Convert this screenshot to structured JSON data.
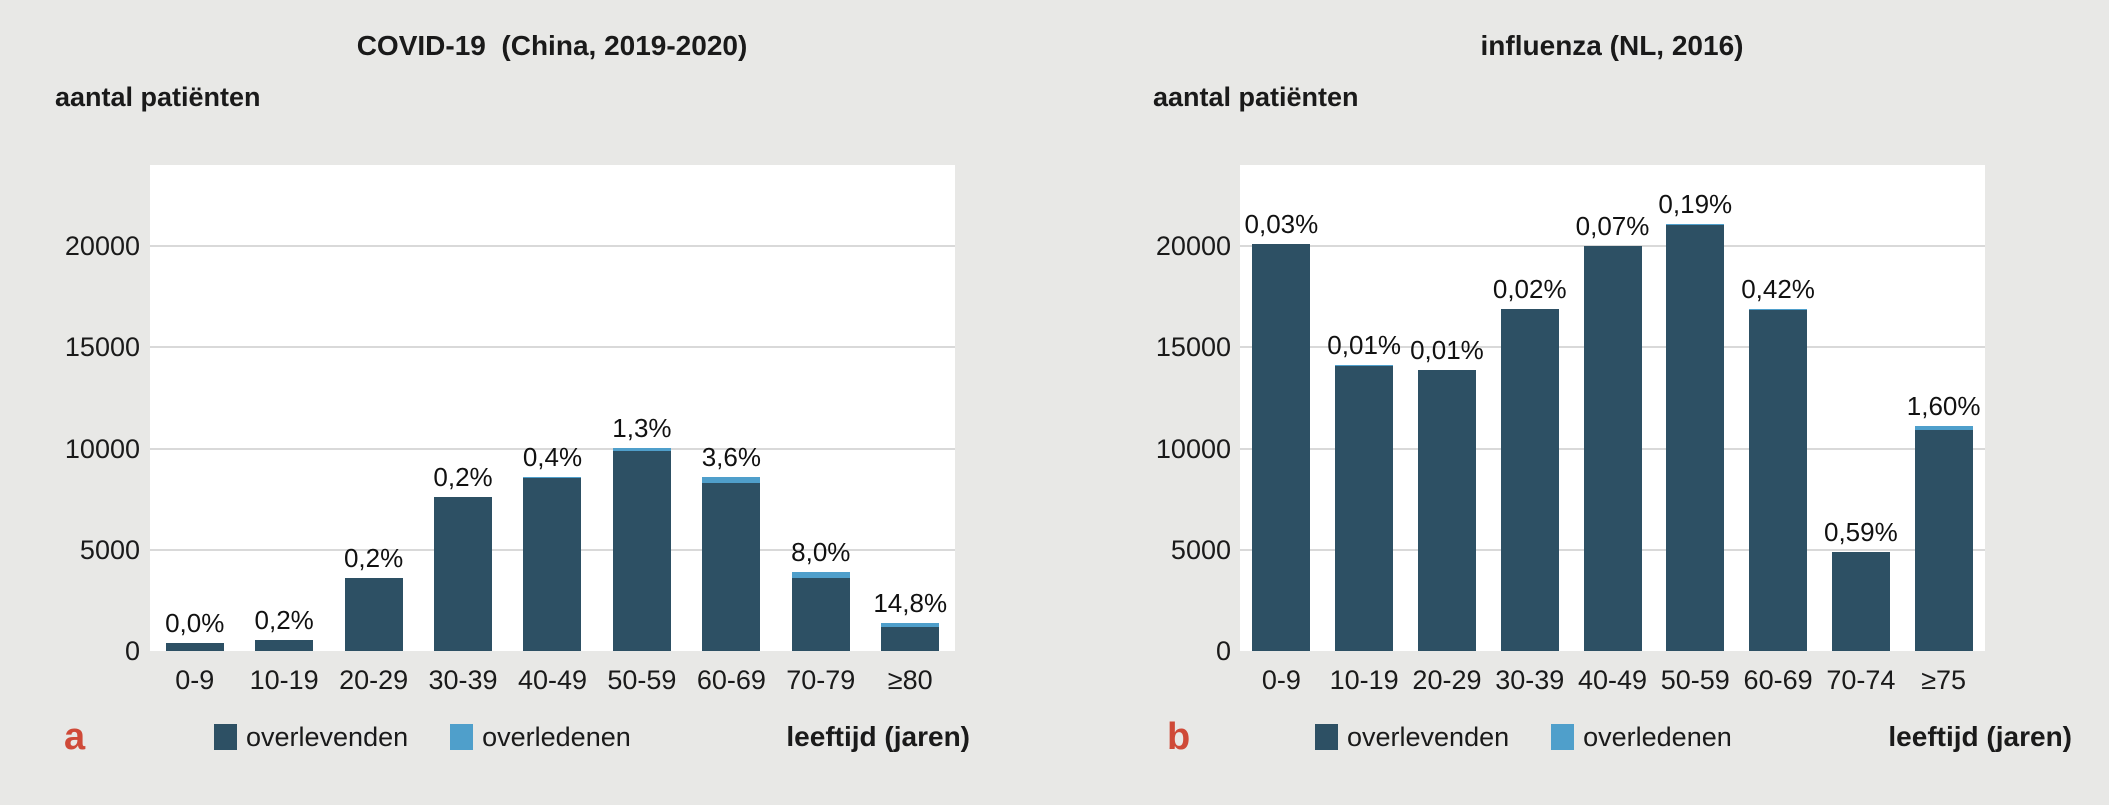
{
  "colors": {
    "background": "#e8e8e6",
    "plot_background": "#ffffff",
    "gridline": "#d9d9d9",
    "survivors": "#2d5064",
    "deceased": "#4f9fcb",
    "panel_letter": "#cf4a38",
    "text": "#1a1a1a"
  },
  "chart_data": [
    {
      "type": "bar",
      "stacked": true,
      "panel_letter": "a",
      "title": "COVID-19  (China, 2019-2020)",
      "ylabel": "aantal patiënten",
      "xlabel": "leeftijd (jaren)",
      "categories": [
        "0-9",
        "10-19",
        "20-29",
        "30-39",
        "40-49",
        "50-59",
        "60-69",
        "70-79",
        "≥80"
      ],
      "series": [
        {
          "name": "overlevenden",
          "values": [
            416,
            548,
            3612,
            7582,
            8533,
            9878,
            8274,
            3606,
            1200
          ]
        },
        {
          "name": "overledenen",
          "values": [
            0,
            1,
            7,
            18,
            38,
            130,
            309,
            312,
            208
          ]
        }
      ],
      "totals": [
        416,
        549,
        3619,
        7600,
        8571,
        10008,
        8583,
        3918,
        1408
      ],
      "bar_labels": [
        "0,0%",
        "0,2%",
        "0,2%",
        "0,2%",
        "0,4%",
        "1,3%",
        "3,6%",
        "8,0%",
        "14,8%"
      ],
      "y_ticks": [
        0,
        5000,
        10000,
        15000,
        20000
      ],
      "ylim": [
        0,
        24000
      ],
      "grid": true,
      "legend_position": "bottom"
    },
    {
      "type": "bar",
      "stacked": true,
      "panel_letter": "b",
      "title": "influenza (NL, 2016)",
      "ylabel": "aantal patiënten",
      "xlabel": "leeftijd (jaren)",
      "categories": [
        "0-9",
        "10-19",
        "20-29",
        "30-39",
        "40-49",
        "50-59",
        "60-69",
        "70-74",
        "≥75"
      ],
      "series": [
        {
          "name": "overlevenden",
          "values": [
            20094,
            14099,
            13899,
            16897,
            19986,
            21060,
            16829,
            4871,
            10922
          ]
        },
        {
          "name": "overledenen",
          "values": [
            6,
            1,
            1,
            3,
            14,
            40,
            71,
            29,
            178
          ]
        }
      ],
      "totals": [
        20100,
        14100,
        13900,
        16900,
        20000,
        21100,
        16900,
        4900,
        11100
      ],
      "bar_labels": [
        "0,03%",
        "0,01%",
        "0,01%",
        "0,02%",
        "0,07%",
        "0,19%",
        "0,42%",
        "0,59%",
        "1,60%"
      ],
      "y_ticks": [
        0,
        5000,
        10000,
        15000,
        20000
      ],
      "ylim": [
        0,
        24000
      ],
      "grid": true,
      "legend_position": "bottom"
    }
  ]
}
